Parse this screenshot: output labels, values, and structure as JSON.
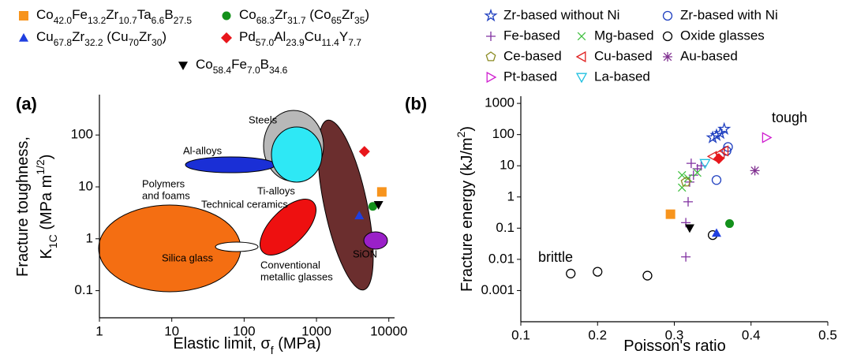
{
  "chart_data": [
    {
      "type": "scatter",
      "panel": "(a)",
      "xscale": "log",
      "yscale": "log",
      "xlim": [
        1,
        12000
      ],
      "ylim": [
        0.03,
        600
      ],
      "xticks": [
        1,
        10,
        100,
        1000,
        10000
      ],
      "yticks": [
        0.1,
        1,
        10,
        100
      ],
      "xlabel": [
        "Elastic limit, σ",
        {
          "text": "f",
          "script": "sub"
        },
        " (MPa)"
      ],
      "ylabel": [
        [
          "Fracture toughness,"
        ],
        [
          "K",
          {
            "text": "1C",
            "script": "sub"
          },
          " (MPa m",
          {
            "text": "1/2",
            "script": "sup"
          },
          ")"
        ]
      ],
      "annotations": [
        {
          "text": [
            "Steels"
          ],
          "color": "#8a8a8a"
        },
        {
          "text": [
            "Al-alloys"
          ],
          "color": "#1a2fd6"
        },
        {
          "text": [
            "Polymers",
            "and foams"
          ],
          "color": "#f07a20"
        },
        {
          "text": [
            "Ti-alloys"
          ],
          "color": "#18c4e0"
        },
        {
          "text": [
            "Technical ceramics"
          ],
          "color": "#e01818"
        },
        {
          "text": [
            "Silica glass"
          ],
          "color": "#000000"
        },
        {
          "text": [
            "SiON"
          ],
          "color": "#9a20b8"
        },
        {
          "text": [
            "Conventional",
            "metallic glasses"
          ],
          "color": "#6b2e2e"
        }
      ],
      "series": [
        {
          "name": "Co42.0Fe13.2Zr10.7Ta6.6B27.5",
          "color": "#f7941d",
          "marker": "square",
          "filled": true,
          "x": [
            8000
          ],
          "values": [
            8
          ]
        },
        {
          "name": "Co68.3Zr31.7 (Co65Zr35)",
          "color": "#13911b",
          "marker": "circle",
          "filled": true,
          "x": [
            6000
          ],
          "values": [
            4.2
          ]
        },
        {
          "name": "Cu67.8Zr32.2 (Cu70Zr30)",
          "color": "#1f3fe0",
          "marker": "triangle-up",
          "filled": true,
          "x": [
            3900
          ],
          "values": [
            2.8
          ]
        },
        {
          "name": "Pd57.0Al23.9Cu11.4Y7.7",
          "color": "#e8161b",
          "marker": "diamond",
          "filled": true,
          "x": [
            4600
          ],
          "values": [
            48
          ]
        },
        {
          "name": "Co58.4Fe7.0B34.6",
          "color": "#000000",
          "marker": "triangle-down",
          "filled": true,
          "x": [
            7200
          ],
          "values": [
            4.5
          ]
        }
      ]
    },
    {
      "type": "scatter",
      "panel": "(b)",
      "xscale": "linear",
      "yscale": "log",
      "xlim": [
        0.1,
        0.5
      ],
      "ylim": [
        0.0001,
        1700
      ],
      "xticks": [
        0.1,
        0.2,
        0.3,
        0.4,
        0.5
      ],
      "yticks": [
        0.001,
        0.01,
        0.1,
        1,
        10,
        100,
        1000
      ],
      "xlabel": [
        "Poisson's ratio"
      ],
      "ylabel": [
        [
          "Fracture energy (kJ/m",
          {
            "text": "2",
            "script": "sup"
          },
          ")"
        ]
      ],
      "annotations": [
        {
          "text": [
            "tough"
          ],
          "color": "#000000"
        },
        {
          "text": [
            "brittle"
          ],
          "color": "#000000"
        }
      ],
      "series": [
        {
          "name": "Zr-based without Ni",
          "color": "#2040c0",
          "marker": "star",
          "filled": false,
          "x": [
            0.35,
            0.355,
            0.36,
            0.365
          ],
          "values": [
            80,
            95,
            110,
            150
          ]
        },
        {
          "name": "Zr-based with Ni",
          "color": "#2040c0",
          "marker": "circle",
          "filled": false,
          "x": [
            0.355,
            0.368,
            0.37
          ],
          "values": [
            3.5,
            30,
            40
          ]
        },
        {
          "name": "Fe-based",
          "color": "#8030a0",
          "marker": "plus",
          "filled": false,
          "x": [
            0.315,
            0.315,
            0.318,
            0.32,
            0.322,
            0.325,
            0.33,
            0.335
          ],
          "values": [
            0.012,
            0.15,
            0.7,
            3,
            12,
            5,
            8,
            10
          ]
        },
        {
          "name": "Mg-based",
          "color": "#40c040",
          "marker": "x",
          "filled": false,
          "x": [
            0.31,
            0.31,
            0.318,
            0.33
          ],
          "values": [
            2,
            5,
            4,
            6
          ]
        },
        {
          "name": "Oxide glasses",
          "color": "#000000",
          "marker": "circle",
          "filled": false,
          "x": [
            0.165,
            0.2,
            0.265,
            0.35
          ],
          "values": [
            0.0035,
            0.004,
            0.003,
            0.06
          ]
        },
        {
          "name": "Ce-based",
          "color": "#8a8a20",
          "marker": "pentagon",
          "filled": false,
          "x": [
            0.315
          ],
          "values": [
            3
          ]
        },
        {
          "name": "Cu-based",
          "color": "#e02020",
          "marker": "triangle-left",
          "filled": false,
          "x": [
            0.35,
            0.36,
            0.365
          ],
          "values": [
            20,
            25,
            30
          ]
        },
        {
          "name": "Au-based",
          "color": "#803090",
          "marker": "asterisk",
          "filled": false,
          "x": [
            0.405
          ],
          "values": [
            7
          ]
        },
        {
          "name": "Pt-based",
          "color": "#d020d0",
          "marker": "triangle-right",
          "filled": false,
          "x": [
            0.42
          ],
          "values": [
            80
          ]
        },
        {
          "name": "La-based",
          "color": "#20c0e0",
          "marker": "triangle-down",
          "filled": false,
          "x": [
            0.34
          ],
          "values": [
            12
          ]
        },
        {
          "color": "#f7941d",
          "marker": "square",
          "filled": true,
          "x": [
            0.295
          ],
          "values": [
            0.28
          ]
        },
        {
          "color": "#13911b",
          "marker": "circle",
          "filled": true,
          "x": [
            0.372
          ],
          "values": [
            0.14
          ]
        },
        {
          "color": "#1f3fe0",
          "marker": "triangle-up",
          "filled": true,
          "x": [
            0.355
          ],
          "values": [
            0.07
          ]
        },
        {
          "color": "#e8161b",
          "marker": "diamond",
          "filled": true,
          "x": [
            0.358
          ],
          "values": [
            17
          ]
        },
        {
          "color": "#000000",
          "marker": "triangle-down",
          "filled": true,
          "x": [
            0.32
          ],
          "values": [
            0.1
          ]
        }
      ]
    }
  ]
}
